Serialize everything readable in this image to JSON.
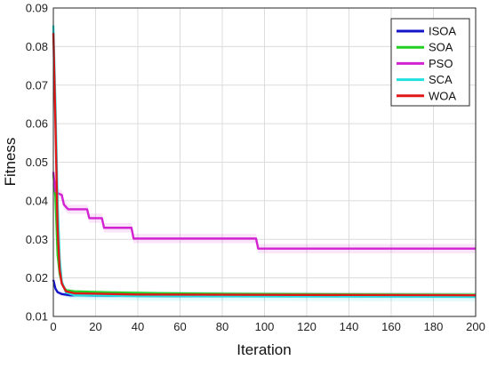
{
  "chart_data": {
    "type": "line",
    "xlabel": "Iteration",
    "ylabel": "Fitness",
    "xlim": [
      0,
      200
    ],
    "ylim": [
      0.01,
      0.09
    ],
    "xticks": [
      "0",
      "20",
      "40",
      "60",
      "80",
      "100",
      "120",
      "140",
      "160",
      "180",
      "200"
    ],
    "yticks": [
      "0.01",
      "0.02",
      "0.03",
      "0.04",
      "0.05",
      "0.06",
      "0.07",
      "0.08",
      "0.09"
    ],
    "grid": true,
    "legend_position": "top-right",
    "series": [
      {
        "name": "ISOA",
        "color": "#1414c8",
        "band": 0.0005,
        "points": [
          [
            0,
            0.0195
          ],
          [
            1,
            0.0172
          ],
          [
            2,
            0.0163
          ],
          [
            4,
            0.0158
          ],
          [
            8,
            0.0155
          ],
          [
            20,
            0.0154
          ],
          [
            60,
            0.0153
          ],
          [
            120,
            0.0153
          ],
          [
            200,
            0.0152
          ]
        ]
      },
      {
        "name": "SOA",
        "color": "#22d022",
        "band": 0.0005,
        "points": [
          [
            0,
            0.047
          ],
          [
            1,
            0.041
          ],
          [
            2,
            0.026
          ],
          [
            3,
            0.021
          ],
          [
            4,
            0.0188
          ],
          [
            5,
            0.0176
          ],
          [
            6,
            0.0168
          ],
          [
            10,
            0.0165
          ],
          [
            30,
            0.0162
          ],
          [
            50,
            0.016
          ],
          [
            100,
            0.0158
          ],
          [
            150,
            0.0157
          ],
          [
            200,
            0.0156
          ]
        ]
      },
      {
        "name": "PSO",
        "color": "#d222d2",
        "band": 0.0012,
        "points": [
          [
            0,
            0.0475
          ],
          [
            1,
            0.0425
          ],
          [
            2,
            0.042
          ],
          [
            4,
            0.0415
          ],
          [
            5,
            0.039
          ],
          [
            7,
            0.0378
          ],
          [
            16,
            0.0378
          ],
          [
            17,
            0.0355
          ],
          [
            23,
            0.0355
          ],
          [
            24,
            0.033
          ],
          [
            37,
            0.033
          ],
          [
            38,
            0.0302
          ],
          [
            96,
            0.0302
          ],
          [
            97,
            0.0276
          ],
          [
            200,
            0.0276
          ]
        ]
      },
      {
        "name": "SCA",
        "color": "#22e0e0",
        "band": 0.0012,
        "points": [
          [
            0,
            0.0855
          ],
          [
            1,
            0.065
          ],
          [
            2,
            0.04
          ],
          [
            3,
            0.025
          ],
          [
            4,
            0.019
          ],
          [
            6,
            0.0162
          ],
          [
            10,
            0.0155
          ],
          [
            40,
            0.0153
          ],
          [
            100,
            0.0152
          ],
          [
            200,
            0.0151
          ]
        ]
      },
      {
        "name": "WOA",
        "color": "#e01818",
        "band": 0.0006,
        "points": [
          [
            0,
            0.0835
          ],
          [
            1,
            0.06
          ],
          [
            2,
            0.033
          ],
          [
            3,
            0.022
          ],
          [
            4,
            0.0185
          ],
          [
            6,
            0.0165
          ],
          [
            10,
            0.016
          ],
          [
            40,
            0.0157
          ],
          [
            100,
            0.0156
          ],
          [
            200,
            0.0155
          ]
        ]
      }
    ]
  }
}
